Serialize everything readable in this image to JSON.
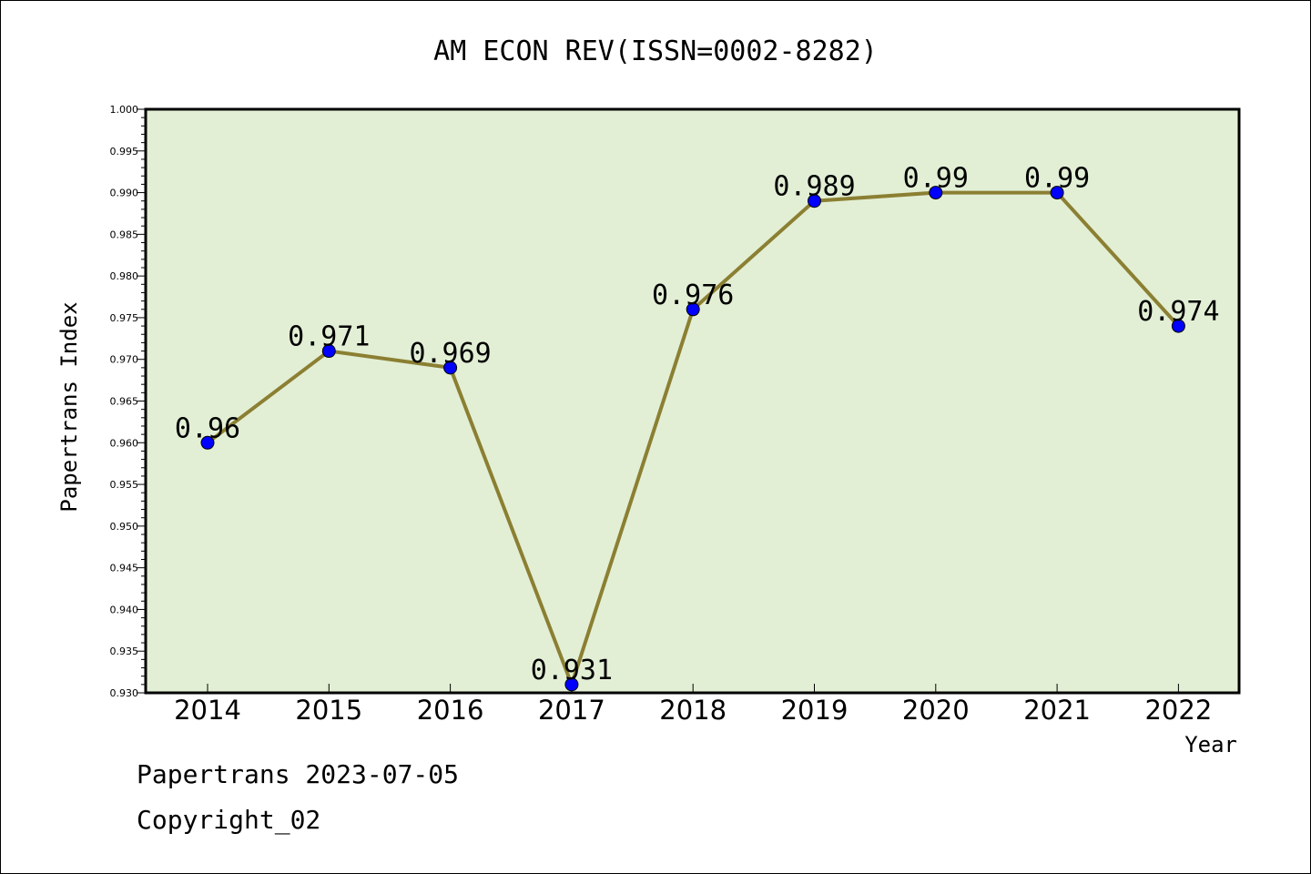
{
  "chart_data": {
    "type": "line",
    "title": "AM ECON REV(ISSN=0002-8282)",
    "xlabel": "Year",
    "ylabel": "Papertrans Index",
    "categories": [
      "2014",
      "2015",
      "2016",
      "2017",
      "2018",
      "2019",
      "2020",
      "2021",
      "2022"
    ],
    "series": [
      {
        "values": [
          0.96,
          0.971,
          0.969,
          0.931,
          0.976,
          0.989,
          0.99,
          0.99,
          0.974
        ],
        "data_labels": [
          "0.96",
          "0.971",
          "0.969",
          "0.931",
          "0.976",
          "0.989",
          "0.99",
          "0.99",
          "0.974"
        ]
      }
    ],
    "ylim": [
      0.93,
      1.0
    ],
    "ytick_labels": [
      "0.930",
      "0.935",
      "0.940",
      "0.945",
      "0.950",
      "0.955",
      "0.960",
      "0.965",
      "0.970",
      "0.975",
      "0.980",
      "0.985",
      "0.990",
      "0.995",
      "1.000"
    ],
    "grid": false,
    "colors": {
      "plot_background": "#e2efd5",
      "line": "#8b7f32",
      "marker": "#0000ff"
    }
  },
  "footer": {
    "line1": "Papertrans 2023-07-05",
    "line2": "Copyright_02"
  }
}
